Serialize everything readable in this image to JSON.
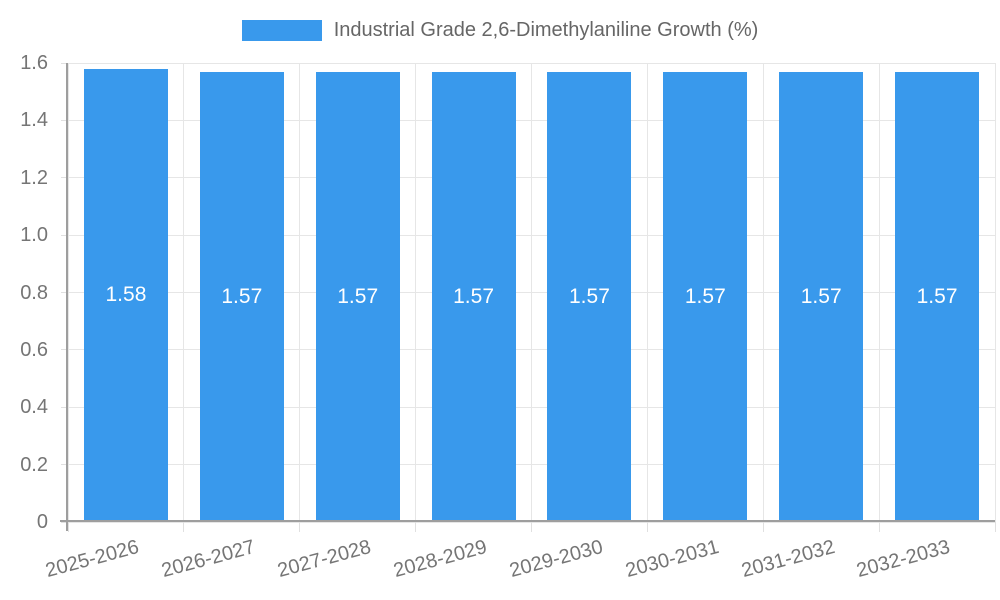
{
  "legend": {
    "label": "Industrial Grade 2,6-Dimethylaniline Growth (%)"
  },
  "chart_data": {
    "type": "bar",
    "title": "Industrial Grade 2,6-Dimethylaniline Growth (%)",
    "categories": [
      "2025-2026",
      "2026-2027",
      "2027-2028",
      "2028-2029",
      "2029-2030",
      "2030-2031",
      "2031-2032",
      "2032-2033"
    ],
    "values": [
      1.58,
      1.57,
      1.57,
      1.57,
      1.57,
      1.57,
      1.57,
      1.57
    ],
    "bar_labels": [
      "1.58",
      "1.57",
      "1.57",
      "1.57",
      "1.57",
      "1.57",
      "1.57",
      "1.57"
    ],
    "xlabel": "",
    "ylabel": "",
    "ylim": [
      0,
      1.6
    ],
    "ytick_step": 0.2,
    "ytick_labels": [
      "0",
      "0.2",
      "0.4",
      "0.6",
      "0.8",
      "1.0",
      "1.2",
      "1.4",
      "1.6"
    ],
    "grid": true,
    "legend_position": "top",
    "x_label_rotation_deg": -15,
    "colors": {
      "bar": "#3999EC",
      "bar_value_text": "#ffffff",
      "axis_line": "#9e9e9e",
      "gridline": "#e6e6e6",
      "tick_text": "#757575",
      "legend_text": "#666666"
    }
  }
}
